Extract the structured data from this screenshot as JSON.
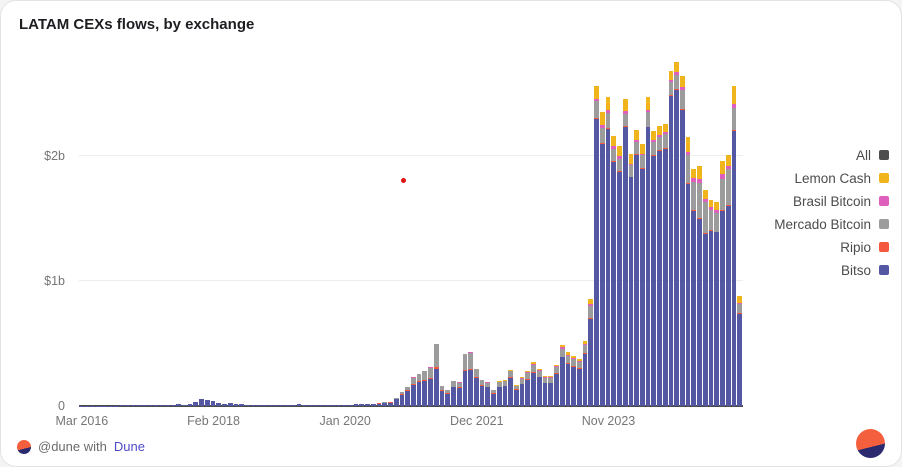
{
  "title": "LATAM CEXs flows, by exchange",
  "footer": {
    "attribution_prefix": "@dune with",
    "attribution_link": "Dune"
  },
  "colors": {
    "background": "#ffffff",
    "baseline": "#4c4c4c",
    "gridline": "#ededed",
    "axis_text": "#767676",
    "title_text": "#1d1d22",
    "legend_text": "#4c4c4c",
    "link": "#4e4bc8",
    "stray_dot": "#e01212",
    "logo_orange": "#f4603e",
    "logo_navy": "#2b2a6e"
  },
  "legend": {
    "items": [
      {
        "label": "All",
        "color": "#4d4d4d"
      },
      {
        "label": "Lemon Cash",
        "color": "#f0b41c"
      },
      {
        "label": "Brasil Bitcoin",
        "color": "#de5fbe"
      },
      {
        "label": "Mercado Bitcoin",
        "color": "#9c9c9c"
      },
      {
        "label": "Ripio",
        "color": "#f4583e"
      },
      {
        "label": "Bitso",
        "color": "#5458a2"
      }
    ]
  },
  "chart_data": {
    "type": "bar",
    "stacked": true,
    "title": "LATAM CEXs flows, by exchange",
    "x_unit": "month",
    "x_range": [
      "Mar 2016",
      "Oct 2025"
    ],
    "values_unit": "USD millions",
    "ylim": [
      0,
      2800
    ],
    "grid": "horizontal",
    "legend_position": "right",
    "y_ticks": [
      {
        "label": "0",
        "value": 0
      },
      {
        "label": "$1b",
        "value": 1000
      },
      {
        "label": "$2b",
        "value": 2000
      }
    ],
    "x_ticks": [
      {
        "label": "Mar 2016",
        "index": 0
      },
      {
        "label": "Feb 2018",
        "index": 23
      },
      {
        "label": "Jan 2020",
        "index": 46
      },
      {
        "label": "Dec 2021",
        "index": 69
      },
      {
        "label": "Nov 2023",
        "index": 92
      }
    ],
    "stack_order_bottom_to_top": [
      "Bitso",
      "Ripio",
      "Mercado Bitcoin",
      "Brasil Bitcoin",
      "Lemon Cash"
    ],
    "series": [
      {
        "name": "Bitso",
        "color": "#5458a2",
        "values": [
          2,
          2,
          3,
          3,
          3,
          4,
          4,
          5,
          5,
          6,
          5,
          5,
          6,
          6,
          7,
          8,
          10,
          14,
          12,
          18,
          30,
          58,
          48,
          38,
          25,
          20,
          28,
          20,
          14,
          12,
          10,
          10,
          12,
          10,
          8,
          8,
          10,
          12,
          14,
          12,
          10,
          9,
          8,
          8,
          8,
          8,
          10,
          12,
          14,
          14,
          16,
          18,
          20,
          25,
          28,
          55,
          90,
          120,
          170,
          190,
          200,
          215,
          300,
          120,
          100,
          150,
          145,
          280,
          285,
          225,
          160,
          150,
          100,
          150,
          160,
          225,
          130,
          175,
          210,
          265,
          230,
          185,
          185,
          260,
          390,
          340,
          315,
          300,
          420,
          700,
          2300,
          2100,
          2220,
          1950,
          1870,
          2230,
          1830,
          2010,
          1900,
          2230,
          2000,
          2040,
          2060,
          2480,
          2530,
          2370,
          1780,
          1560,
          1500,
          1380,
          1400,
          1390,
          1560,
          1600,
          2200,
          740
        ]
      },
      {
        "name": "Ripio",
        "color": "#f4583e",
        "values": [
          0,
          0,
          0,
          0,
          0,
          0,
          0,
          0,
          0,
          0,
          0,
          0,
          0,
          0,
          0,
          0,
          0,
          0,
          0,
          0,
          0,
          0,
          0,
          0,
          0,
          0,
          0,
          0,
          0,
          0,
          0,
          0,
          0,
          0,
          0,
          0,
          0,
          0,
          0,
          0,
          0,
          0,
          0,
          0,
          0,
          0,
          0,
          0,
          0,
          0,
          0,
          2,
          2,
          3,
          3,
          4,
          6,
          8,
          8,
          8,
          8,
          8,
          10,
          5,
          4,
          5,
          5,
          8,
          8,
          6,
          5,
          4,
          3,
          4,
          4,
          5,
          3,
          4,
          4,
          5,
          4,
          3,
          3,
          4,
          5,
          4,
          4,
          4,
          5,
          6,
          8,
          8,
          8,
          8,
          8,
          8,
          6,
          6,
          6,
          6,
          6,
          6,
          6,
          6,
          6,
          6,
          6,
          5,
          5,
          5,
          5,
          5,
          5,
          5,
          5,
          3
        ]
      },
      {
        "name": "Mercado Bitcoin",
        "color": "#9c9c9c",
        "values": [
          0,
          0,
          0,
          0,
          0,
          0,
          0,
          0,
          0,
          0,
          0,
          0,
          0,
          0,
          0,
          0,
          0,
          0,
          0,
          0,
          0,
          0,
          0,
          0,
          0,
          0,
          0,
          0,
          0,
          0,
          0,
          0,
          0,
          0,
          0,
          0,
          0,
          0,
          0,
          0,
          0,
          0,
          0,
          0,
          0,
          0,
          0,
          0,
          0,
          0,
          0,
          0,
          2,
          3,
          3,
          6,
          14,
          22,
          50,
          60,
          70,
          85,
          185,
          33,
          24,
          43,
          38,
          128,
          133,
          65,
          41,
          32,
          23,
          36,
          34,
          48,
          25,
          39,
          50,
          60,
          48,
          36,
          36,
          46,
          65,
          58,
          55,
          50,
          65,
          94,
          130,
          120,
          120,
          100,
          100,
          100,
          90,
          100,
          100,
          120,
          110,
          110,
          110,
          110,
          110,
          150,
          220,
          230,
          280,
          250,
          160,
          150,
          250,
          290,
          180,
          70
        ]
      },
      {
        "name": "Brasil Bitcoin",
        "color": "#de5fbe",
        "values": [
          0,
          0,
          0,
          0,
          0,
          0,
          0,
          0,
          0,
          0,
          0,
          0,
          0,
          0,
          0,
          0,
          0,
          0,
          0,
          0,
          0,
          0,
          0,
          0,
          0,
          0,
          0,
          0,
          0,
          0,
          0,
          0,
          0,
          0,
          0,
          0,
          0,
          0,
          0,
          0,
          0,
          0,
          0,
          0,
          0,
          0,
          0,
          0,
          0,
          0,
          0,
          0,
          0,
          0,
          0,
          0,
          0,
          0,
          2,
          2,
          2,
          2,
          5,
          2,
          2,
          2,
          2,
          4,
          4,
          4,
          4,
          4,
          4,
          4,
          4,
          4,
          4,
          4,
          6,
          8,
          6,
          6,
          6,
          8,
          10,
          10,
          8,
          8,
          10,
          15,
          22,
          22,
          22,
          22,
          20,
          22,
          14,
          14,
          14,
          14,
          14,
          14,
          14,
          14,
          24,
          24,
          30,
          30,
          35,
          25,
          25,
          25,
          45,
          25,
          35,
          12
        ]
      },
      {
        "name": "Lemon Cash",
        "color": "#f0b41c",
        "values": [
          0,
          0,
          0,
          0,
          0,
          0,
          0,
          0,
          0,
          0,
          0,
          0,
          0,
          0,
          0,
          0,
          0,
          0,
          0,
          0,
          0,
          0,
          0,
          0,
          0,
          0,
          0,
          0,
          0,
          0,
          0,
          0,
          0,
          0,
          0,
          0,
          0,
          0,
          0,
          0,
          0,
          0,
          0,
          0,
          0,
          0,
          0,
          0,
          0,
          0,
          0,
          0,
          0,
          0,
          0,
          0,
          0,
          0,
          0,
          0,
          0,
          0,
          0,
          0,
          0,
          0,
          0,
          0,
          0,
          0,
          0,
          0,
          0,
          6,
          8,
          8,
          8,
          8,
          10,
          12,
          12,
          10,
          10,
          12,
          20,
          18,
          18,
          18,
          20,
          45,
          100,
          100,
          100,
          80,
          80,
          100,
          80,
          80,
          80,
          100,
          70,
          70,
          70,
          70,
          80,
          90,
          114,
          75,
          100,
          70,
          60,
          60,
          100,
          90,
          140,
          55
        ]
      }
    ]
  }
}
